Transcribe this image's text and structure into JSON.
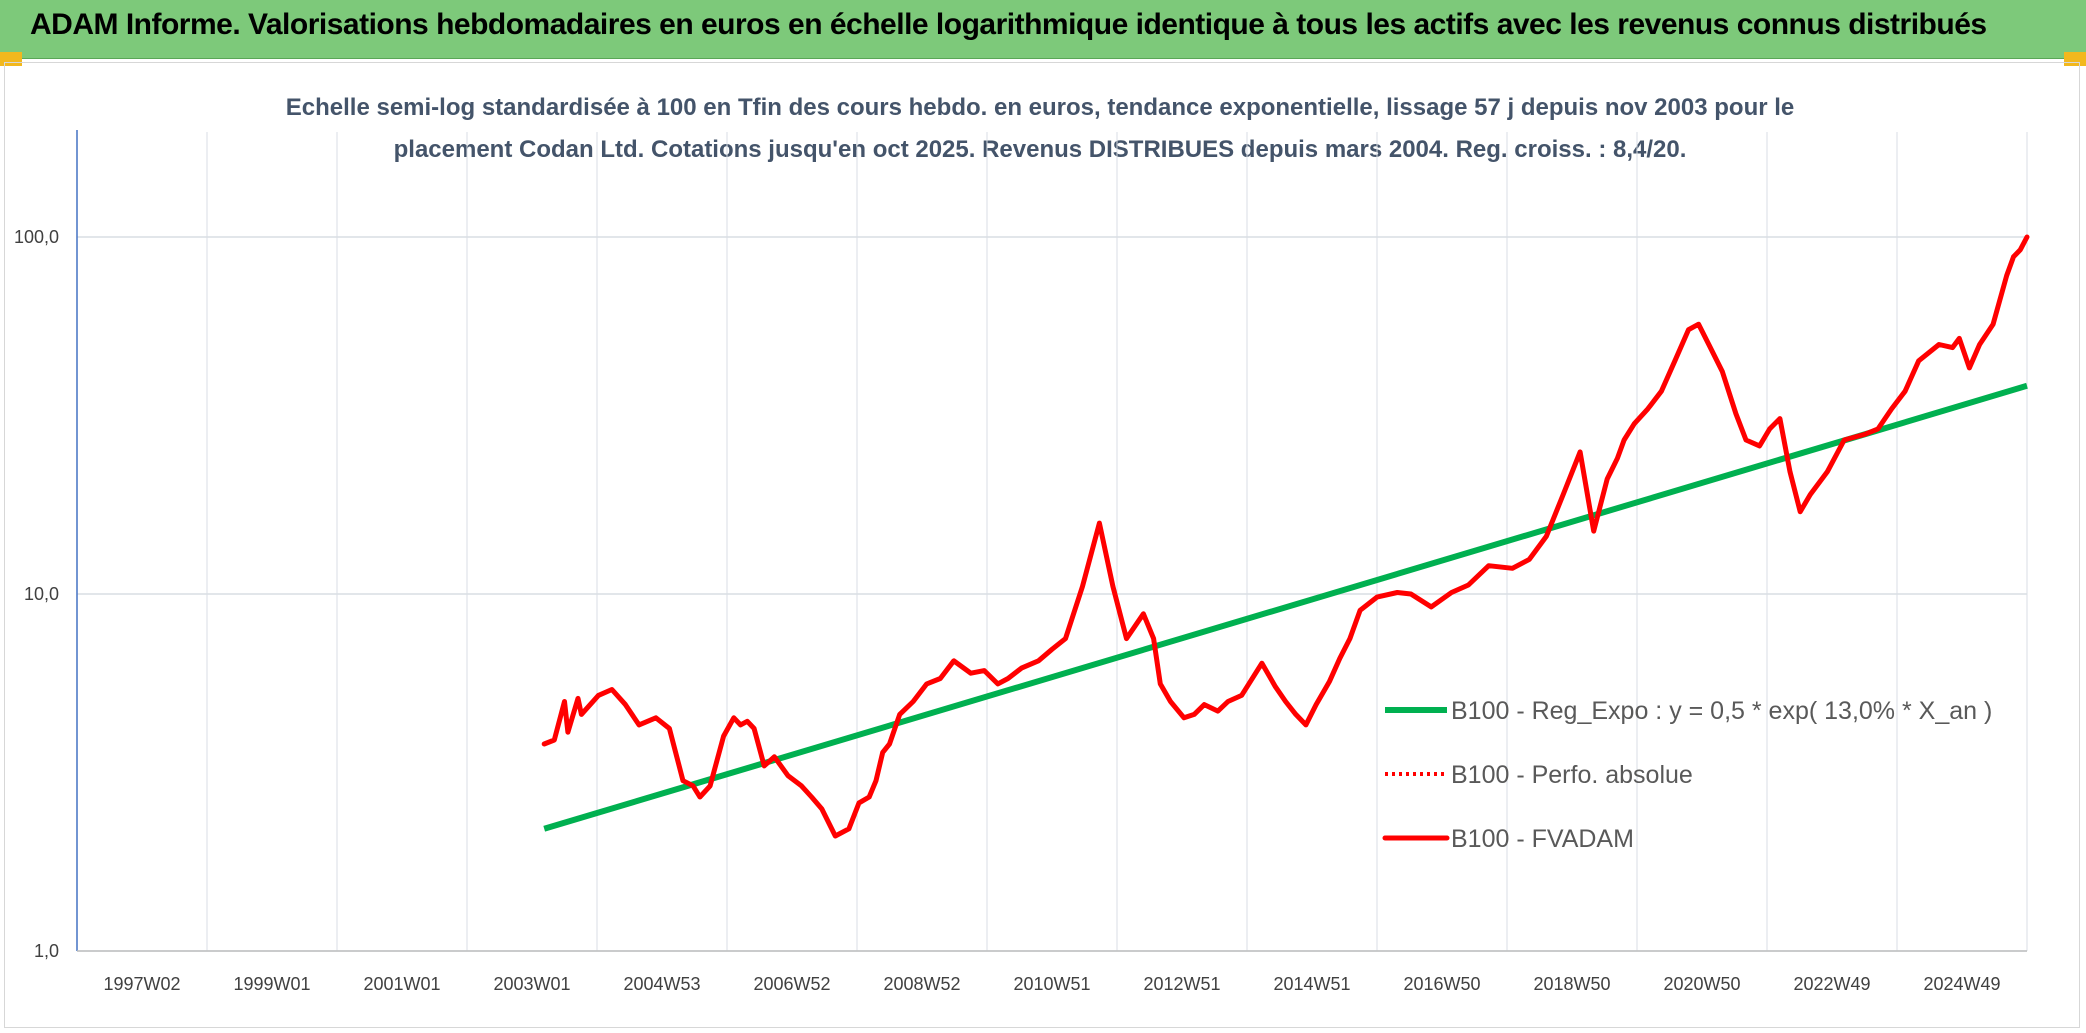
{
  "header": {
    "title": "ADAM Informe. Valorisations hebdomadaires en euros en échelle logarithmique identique à tous les actifs avec les revenus connus distribués",
    "background": "#7dc97a"
  },
  "colors": {
    "trend": "#00b050",
    "fvadam": "#ff0000",
    "perfo": "#ff0000",
    "grid": "#d9dee4"
  },
  "chart_data": {
    "type": "line",
    "title_lines": [
      "Echelle semi-log standardisée à 100 en Tfin des cours hebdo. en euros, tendance exponentielle, lissage 57 j depuis nov 2003 pour le",
      "placement Codan Ltd. Cotations jusqu'en oct 2025. Revenus DISTRIBUES depuis mars 2004. Reg. croiss. : 8,4/20."
    ],
    "y_scale": "log",
    "ylim": [
      1,
      100
    ],
    "y_ticks": [
      "1,0",
      "10,0",
      "100,0"
    ],
    "x_range": [
      1997.0,
      2025.8
    ],
    "x_ticks": [
      "1997W02",
      "1999W01",
      "2001W01",
      "2003W01",
      "2004W53",
      "2006W52",
      "2008W52",
      "2010W51",
      "2012W51",
      "2014W51",
      "2016W50",
      "2018W50",
      "2020W50",
      "2022W49",
      "2024W49"
    ],
    "legend_position": "bottom-right",
    "series": [
      {
        "name": "B100 - Reg_Expo : y = 0,5 * exp( 13,0% *  X_an )",
        "style": "solid-green",
        "x": [
          2003.9,
          2025.8
        ],
        "y": [
          2.2,
          38.3
        ]
      },
      {
        "name": "B100 - Perfo. absolue",
        "style": "dotted-red",
        "x": [],
        "y": []
      },
      {
        "name": "B100 - FVADAM",
        "style": "solid-red",
        "x": [
          2003.9,
          2004.05,
          2004.2,
          2004.25,
          2004.4,
          2004.45,
          2004.7,
          2004.9,
          2005.1,
          2005.3,
          2005.55,
          2005.75,
          2005.95,
          2006.1,
          2006.2,
          2006.35,
          2006.55,
          2006.7,
          2006.8,
          2006.9,
          2007.0,
          2007.15,
          2007.3,
          2007.5,
          2007.7,
          2007.85,
          2008.0,
          2008.2,
          2008.4,
          2008.55,
          2008.7,
          2008.8,
          2008.9,
          2009.0,
          2009.15,
          2009.35,
          2009.55,
          2009.75,
          2009.95,
          2010.2,
          2010.4,
          2010.6,
          2010.75,
          2010.95,
          2011.2,
          2011.4,
          2011.6,
          2011.85,
          2012.1,
          2012.3,
          2012.5,
          2012.75,
          2012.9,
          2013.0,
          2013.15,
          2013.35,
          2013.5,
          2013.65,
          2013.85,
          2014.0,
          2014.2,
          2014.5,
          2014.7,
          2014.85,
          2015.0,
          2015.15,
          2015.3,
          2015.5,
          2015.65,
          2015.8,
          2015.95,
          2016.2,
          2016.5,
          2016.7,
          2017.0,
          2017.3,
          2017.55,
          2017.85,
          2018.2,
          2018.45,
          2018.7,
          2018.95,
          2019.2,
          2019.4,
          2019.6,
          2019.75,
          2019.85,
          2020.0,
          2020.2,
          2020.4,
          2020.6,
          2020.8,
          2020.95,
          2021.1,
          2021.3,
          2021.5,
          2021.65,
          2021.85,
          2022.0,
          2022.15,
          2022.3,
          2022.45,
          2022.6,
          2022.85,
          2023.1,
          2023.4,
          2023.6,
          2023.8,
          2024.0,
          2024.2,
          2024.5,
          2024.7,
          2024.8,
          2024.95,
          2025.1,
          2025.3,
          2025.5,
          2025.6,
          2025.7,
          2025.8
        ],
        "y": [
          3.8,
          3.9,
          5.0,
          4.1,
          5.1,
          4.6,
          5.2,
          5.4,
          4.9,
          4.3,
          4.5,
          4.2,
          3.0,
          2.9,
          2.7,
          2.9,
          4.0,
          4.5,
          4.3,
          4.4,
          4.2,
          3.3,
          3.5,
          3.1,
          2.9,
          2.7,
          2.5,
          2.1,
          2.2,
          2.6,
          2.7,
          3.0,
          3.6,
          3.8,
          4.6,
          5.0,
          5.6,
          5.8,
          6.5,
          6.0,
          6.1,
          5.6,
          5.8,
          6.2,
          6.5,
          7.0,
          7.5,
          10.5,
          15.8,
          10.5,
          7.5,
          8.8,
          7.5,
          5.6,
          5.0,
          4.5,
          4.6,
          4.9,
          4.7,
          5.0,
          5.2,
          6.4,
          5.5,
          5.0,
          4.6,
          4.3,
          4.9,
          5.7,
          6.6,
          7.5,
          9.0,
          9.8,
          10.1,
          10.0,
          9.2,
          10.1,
          10.6,
          12.0,
          11.8,
          12.5,
          14.5,
          19.0,
          25.0,
          15.0,
          21.0,
          24.0,
          27.0,
          30.0,
          33.0,
          37.0,
          45.0,
          55.0,
          57.0,
          50.0,
          42.0,
          32.0,
          27.0,
          26.0,
          29.0,
          31.0,
          22.0,
          17.0,
          19.0,
          22.0,
          27.0,
          28.0,
          29.0,
          33.0,
          37.0,
          45.0,
          50.0,
          49.0,
          52.0,
          43.0,
          50.0,
          57.0,
          78.0,
          88.0,
          92.0,
          100.0
        ]
      }
    ]
  }
}
